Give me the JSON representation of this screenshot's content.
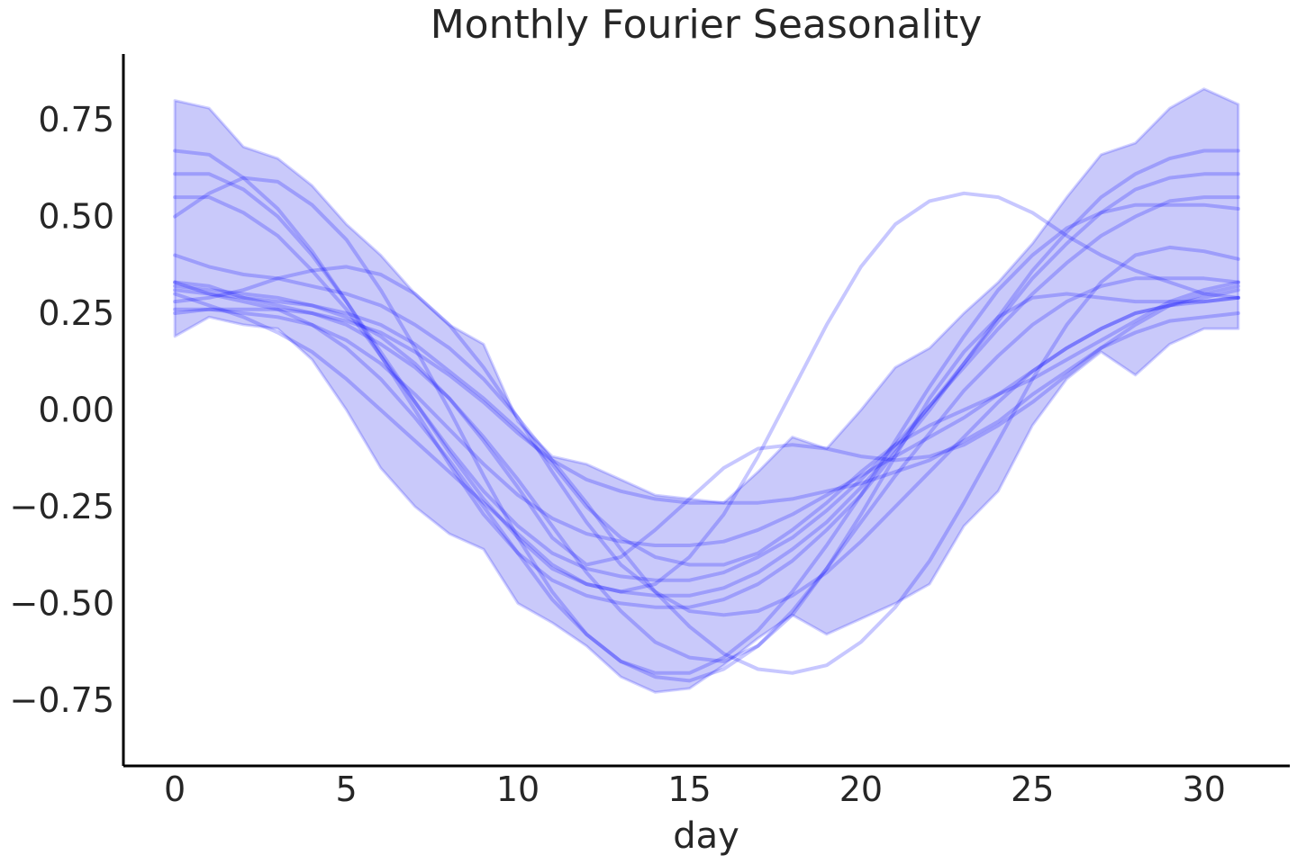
{
  "chart_data": {
    "type": "line",
    "title": "Monthly Fourier Seasonality",
    "xlabel": "day",
    "ylabel": "",
    "xlim": [
      -1.5,
      32.5
    ],
    "ylim": [
      -0.92,
      0.92
    ],
    "xticks": [
      0,
      5,
      10,
      15,
      20,
      25,
      30
    ],
    "yticks": [
      -0.75,
      -0.5,
      -0.25,
      0.0,
      0.25,
      0.5,
      0.75
    ],
    "xtick_labels": [
      "0",
      "5",
      "10",
      "15",
      "20",
      "25",
      "30"
    ],
    "ytick_labels": [
      "−0.75",
      "−0.50",
      "−0.25",
      "0.00",
      "0.25",
      "0.50",
      "0.75"
    ],
    "grid": false,
    "line_color": "#0000ff",
    "band_color": "#6a6af0",
    "x": [
      0,
      1,
      2,
      3,
      4,
      5,
      6,
      7,
      8,
      9,
      10,
      11,
      12,
      13,
      14,
      15,
      16,
      17,
      18,
      19,
      20,
      21,
      22,
      23,
      24,
      25,
      26,
      27,
      28,
      29,
      30,
      31
    ],
    "band": {
      "upper": [
        0.8,
        0.78,
        0.68,
        0.65,
        0.58,
        0.48,
        0.4,
        0.3,
        0.22,
        0.17,
        -0.03,
        -0.12,
        -0.14,
        -0.18,
        -0.22,
        -0.23,
        -0.24,
        -0.16,
        -0.07,
        -0.1,
        0.0,
        0.11,
        0.16,
        0.25,
        0.33,
        0.43,
        0.55,
        0.66,
        0.69,
        0.78,
        0.83,
        0.79
      ],
      "lower": [
        0.19,
        0.24,
        0.22,
        0.21,
        0.13,
        0.0,
        -0.15,
        -0.25,
        -0.32,
        -0.36,
        -0.5,
        -0.55,
        -0.61,
        -0.69,
        -0.73,
        -0.72,
        -0.66,
        -0.59,
        -0.53,
        -0.58,
        -0.54,
        -0.5,
        -0.45,
        -0.3,
        -0.21,
        -0.04,
        0.08,
        0.15,
        0.09,
        0.17,
        0.21,
        0.21
      ]
    },
    "series": [
      {
        "values": [
          0.67,
          0.66,
          0.6,
          0.52,
          0.41,
          0.28,
          0.14,
          0.0,
          -0.14,
          -0.27,
          -0.37,
          -0.44,
          -0.48,
          -0.5,
          -0.51,
          -0.51,
          -0.49,
          -0.45,
          -0.39,
          -0.31,
          -0.22,
          -0.11,
          0.0,
          0.12,
          0.24,
          0.36,
          0.46,
          0.55,
          0.61,
          0.65,
          0.67,
          0.67
        ]
      },
      {
        "values": [
          0.61,
          0.61,
          0.57,
          0.5,
          0.4,
          0.28,
          0.15,
          0.02,
          -0.11,
          -0.23,
          -0.33,
          -0.41,
          -0.45,
          -0.47,
          -0.48,
          -0.48,
          -0.46,
          -0.42,
          -0.36,
          -0.29,
          -0.2,
          -0.1,
          0.01,
          0.12,
          0.23,
          0.34,
          0.43,
          0.51,
          0.57,
          0.6,
          0.61,
          0.61
        ]
      },
      {
        "values": [
          0.55,
          0.55,
          0.51,
          0.45,
          0.36,
          0.26,
          0.14,
          0.02,
          -0.1,
          -0.21,
          -0.3,
          -0.37,
          -0.41,
          -0.43,
          -0.44,
          -0.44,
          -0.42,
          -0.38,
          -0.33,
          -0.26,
          -0.18,
          -0.09,
          0.01,
          0.11,
          0.21,
          0.3,
          0.38,
          0.45,
          0.5,
          0.54,
          0.55,
          0.55
        ]
      },
      {
        "values": [
          0.5,
          0.56,
          0.6,
          0.59,
          0.53,
          0.44,
          0.31,
          0.16,
          0.0,
          -0.17,
          -0.33,
          -0.47,
          -0.58,
          -0.65,
          -0.68,
          -0.68,
          -0.64,
          -0.57,
          -0.47,
          -0.35,
          -0.22,
          -0.08,
          0.06,
          0.19,
          0.31,
          0.4,
          0.47,
          0.51,
          0.53,
          0.53,
          0.53,
          0.52
        ]
      },
      {
        "values": [
          0.4,
          0.37,
          0.35,
          0.34,
          0.32,
          0.3,
          0.27,
          0.22,
          0.16,
          0.08,
          -0.02,
          -0.13,
          -0.24,
          -0.36,
          -0.47,
          -0.56,
          -0.63,
          -0.67,
          -0.68,
          -0.66,
          -0.6,
          -0.51,
          -0.39,
          -0.24,
          -0.08,
          0.08,
          0.22,
          0.33,
          0.4,
          0.42,
          0.41,
          0.39
        ]
      },
      {
        "values": [
          0.33,
          0.32,
          0.29,
          0.27,
          0.25,
          0.22,
          0.17,
          0.11,
          0.03,
          -0.07,
          -0.18,
          -0.3,
          -0.42,
          -0.52,
          -0.6,
          -0.64,
          -0.65,
          -0.61,
          -0.53,
          -0.41,
          -0.27,
          -0.12,
          0.03,
          0.15,
          0.24,
          0.29,
          0.3,
          0.29,
          0.28,
          0.28,
          0.28,
          0.29
        ]
      },
      {
        "values": [
          0.33,
          0.3,
          0.28,
          0.26,
          0.22,
          0.16,
          0.08,
          -0.02,
          -0.13,
          -0.25,
          -0.37,
          -0.49,
          -0.58,
          -0.65,
          -0.69,
          -0.7,
          -0.67,
          -0.61,
          -0.52,
          -0.41,
          -0.29,
          -0.17,
          -0.06,
          0.05,
          0.14,
          0.22,
          0.28,
          0.32,
          0.34,
          0.34,
          0.34,
          0.33
        ]
      },
      {
        "values": [
          0.28,
          0.29,
          0.31,
          0.34,
          0.36,
          0.37,
          0.35,
          0.3,
          0.22,
          0.11,
          -0.02,
          -0.16,
          -0.29,
          -0.4,
          -0.47,
          -0.52,
          -0.53,
          -0.52,
          -0.48,
          -0.42,
          -0.34,
          -0.25,
          -0.16,
          -0.07,
          0.02,
          0.1,
          0.16,
          0.21,
          0.25,
          0.27,
          0.29,
          0.31
        ]
      },
      {
        "values": [
          0.25,
          0.26,
          0.26,
          0.26,
          0.25,
          0.23,
          0.2,
          0.15,
          0.09,
          0.02,
          -0.06,
          -0.13,
          -0.18,
          -0.21,
          -0.23,
          -0.24,
          -0.24,
          -0.24,
          -0.23,
          -0.21,
          -0.19,
          -0.16,
          -0.13,
          -0.08,
          -0.03,
          0.04,
          0.1,
          0.16,
          0.2,
          0.23,
          0.24,
          0.25
        ]
      },
      {
        "values": [
          0.31,
          0.3,
          0.29,
          0.28,
          0.27,
          0.25,
          0.22,
          0.17,
          0.1,
          0.03,
          -0.05,
          -0.14,
          -0.25,
          -0.33,
          -0.38,
          -0.4,
          -0.4,
          -0.37,
          -0.31,
          -0.24,
          -0.16,
          -0.09,
          -0.04,
          0.0,
          0.04,
          0.08,
          0.13,
          0.18,
          0.23,
          0.28,
          0.31,
          0.33
        ]
      },
      {
        "values": [
          0.26,
          0.26,
          0.25,
          0.24,
          0.22,
          0.18,
          0.12,
          0.04,
          -0.05,
          -0.14,
          -0.22,
          -0.28,
          -0.32,
          -0.34,
          -0.35,
          -0.35,
          -0.34,
          -0.31,
          -0.27,
          -0.22,
          -0.17,
          -0.12,
          -0.07,
          -0.02,
          0.04,
          0.1,
          0.16,
          0.21,
          0.25,
          0.27,
          0.28,
          0.29
        ]
      },
      {
        "values": [
          0.3,
          0.27,
          0.24,
          0.2,
          0.15,
          0.08,
          0.0,
          -0.08,
          -0.16,
          -0.24,
          -0.32,
          -0.4,
          -0.45,
          -0.47,
          -0.45,
          -0.38,
          -0.27,
          -0.12,
          0.05,
          0.22,
          0.37,
          0.48,
          0.54,
          0.56,
          0.55,
          0.51,
          0.45,
          0.4,
          0.36,
          0.33,
          0.3,
          0.29
        ]
      },
      {
        "values": [
          0.32,
          0.31,
          0.3,
          0.29,
          0.27,
          0.24,
          0.19,
          0.12,
          0.03,
          -0.08,
          -0.2,
          -0.33,
          -0.4,
          -0.38,
          -0.31,
          -0.23,
          -0.15,
          -0.1,
          -0.09,
          -0.1,
          -0.12,
          -0.13,
          -0.12,
          -0.09,
          -0.04,
          0.02,
          0.09,
          0.16,
          0.22,
          0.27,
          0.3,
          0.32
        ]
      }
    ]
  }
}
